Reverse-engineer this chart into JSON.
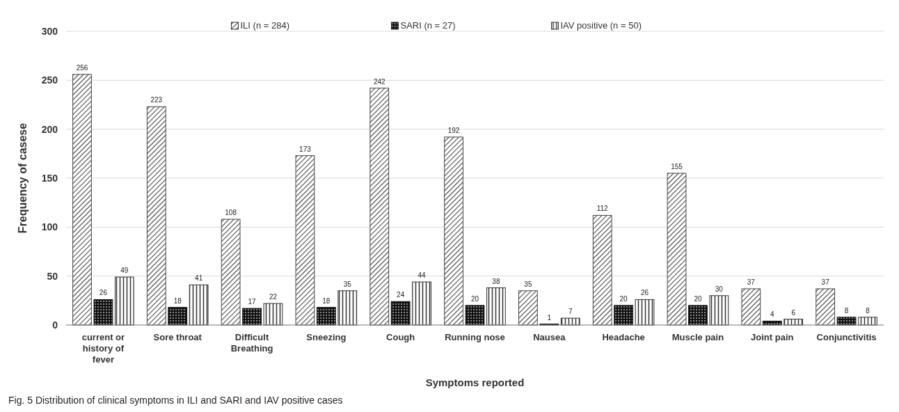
{
  "chart_data": {
    "type": "bar",
    "xlabel": "Symptoms reported",
    "ylabel": "Frequency of casese",
    "categories": [
      "current or history of fever",
      "Sore throat",
      "Difficult Breathing",
      "Sneezing",
      "Cough",
      "Running nose",
      "Nausea",
      "Headache",
      "Muscle pain",
      "Joint pain",
      "Conjunctivitis"
    ],
    "series": [
      {
        "name": "ILI (n = 284)",
        "color": "#444444",
        "values": [
          256,
          223,
          108,
          173,
          242,
          192,
          35,
          112,
          155,
          37,
          37
        ]
      },
      {
        "name": "SARI (n = 27)",
        "color": "#111111",
        "values": [
          26,
          18,
          17,
          18,
          24,
          20,
          1,
          20,
          20,
          4,
          8
        ]
      },
      {
        "name": "IAV positive (n = 50)",
        "color": "#333333",
        "values": [
          49,
          41,
          22,
          35,
          44,
          38,
          7,
          26,
          30,
          6,
          8
        ]
      }
    ],
    "ylim": [
      0,
      300
    ],
    "yticks": [
      0,
      50,
      100,
      150,
      200,
      250,
      300
    ],
    "grid": "y",
    "legend": "top",
    "data_labels": true,
    "annotations": [
      "Fig. 5  Distribution of clinical symptoms in ILI and SARI and IAV positive cases"
    ]
  }
}
